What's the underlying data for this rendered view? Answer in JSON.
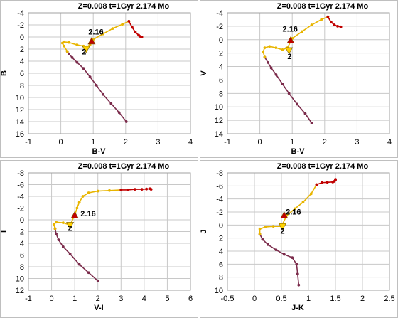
{
  "chart_data": [
    {
      "type": "scatter",
      "title": "Z=0.008  t=1Gyr  2.174 Mo",
      "xlabel": "B-V",
      "ylabel": "B",
      "xlim": [
        -1,
        4
      ],
      "ylim": [
        16,
        -4
      ],
      "xticks": [
        "-1",
        "0",
        "1",
        "2",
        "3",
        "4"
      ],
      "yticks": [
        "-4",
        "-2",
        "0",
        "2",
        "4",
        "6",
        "8",
        "10",
        "12",
        "14",
        "16"
      ],
      "grid": true,
      "annotations": [
        {
          "text": "2.16",
          "x": 0.85,
          "y": -0.4
        },
        {
          "text": "2",
          "x": 0.65,
          "y": 2.9
        }
      ],
      "markers": [
        {
          "name": "tri-2.16",
          "x": 0.95,
          "y": 0.7,
          "color": "#c00000"
        },
        {
          "name": "tri-2",
          "x": 0.78,
          "y": 2.0,
          "color": "#ffd200"
        }
      ],
      "series": [
        {
          "color": "#7b2b4b",
          "marker": "dot",
          "x": [
            2.02,
            1.8,
            1.55,
            1.3,
            1.1,
            0.9,
            0.7,
            0.5,
            0.35,
            0.25,
            0.2
          ],
          "y": [
            14.0,
            12.5,
            11.0,
            9.5,
            8.0,
            6.6,
            5.2,
            4.2,
            3.4,
            2.8,
            2.4
          ]
        },
        {
          "color": "#e8b500",
          "marker": "dot",
          "x": [
            0.2,
            0.1,
            0.05,
            0.1,
            0.25,
            0.5,
            0.7,
            0.8,
            0.9,
            0.95,
            1.0,
            1.3,
            1.6,
            1.9,
            2.1
          ],
          "y": [
            2.4,
            1.5,
            1.0,
            0.8,
            0.9,
            1.3,
            1.5,
            1.6,
            1.3,
            0.7,
            0.4,
            -0.5,
            -1.4,
            -2.1,
            -2.6
          ]
        },
        {
          "color": "#c00000",
          "marker": "dot",
          "x": [
            2.1,
            2.2,
            2.3,
            2.4,
            2.45,
            2.5
          ],
          "y": [
            -2.6,
            -1.6,
            -0.8,
            -0.3,
            -0.1,
            0.0
          ]
        }
      ]
    },
    {
      "type": "scatter",
      "title": "Z=0.008  t=1Gyr  2.174 Mo",
      "xlabel": "B-V",
      "ylabel": "V",
      "xlim": [
        -1,
        4
      ],
      "ylim": [
        14,
        -4
      ],
      "xticks": [
        "-1",
        "0",
        "1",
        "2",
        "3",
        "4"
      ],
      "yticks": [
        "-4",
        "-2",
        "0",
        "2",
        "4",
        "6",
        "8",
        "10",
        "12",
        "14"
      ],
      "grid": true,
      "annotations": [
        {
          "text": "2.16",
          "x": 0.7,
          "y": -1.2
        },
        {
          "text": "2",
          "x": 0.85,
          "y": 2.9
        }
      ],
      "markers": [
        {
          "name": "tri-2.16",
          "x": 0.95,
          "y": 0.1,
          "color": "#c00000"
        },
        {
          "name": "tri-2",
          "x": 0.9,
          "y": 1.6,
          "color": "#ffd200"
        }
      ],
      "series": [
        {
          "color": "#7b2b4b",
          "marker": "dot",
          "x": [
            1.6,
            1.4,
            1.15,
            0.9,
            0.7,
            0.5,
            0.35,
            0.25,
            0.15
          ],
          "y": [
            12.4,
            11.0,
            9.6,
            8.0,
            6.6,
            5.2,
            4.2,
            3.4,
            2.6
          ]
        },
        {
          "color": "#e8b500",
          "marker": "dot",
          "x": [
            0.15,
            0.1,
            0.15,
            0.3,
            0.5,
            0.7,
            0.85,
            0.95,
            1.0,
            1.3,
            1.6,
            1.9,
            2.1
          ],
          "y": [
            2.6,
            1.8,
            1.2,
            1.0,
            1.2,
            1.5,
            1.2,
            0.3,
            -0.2,
            -1.2,
            -2.2,
            -3.0,
            -3.4
          ]
        },
        {
          "color": "#c00000",
          "marker": "dot",
          "x": [
            2.1,
            2.2,
            2.3,
            2.4,
            2.5
          ],
          "y": [
            -3.4,
            -2.6,
            -2.2,
            -2.0,
            -1.9
          ]
        }
      ]
    },
    {
      "type": "scatter",
      "title": "Z=0.008  t=1Gyr  2.174 Mo",
      "xlabel": "V-I",
      "ylabel": "I",
      "xlim": [
        -1,
        6
      ],
      "ylim": [
        12,
        -8
      ],
      "xticks": [
        "-1",
        "0",
        "1",
        "2",
        "3",
        "4",
        "5",
        "6"
      ],
      "yticks": [
        "-8",
        "-6",
        "-4",
        "-2",
        "0",
        "2",
        "4",
        "6",
        "8",
        "10",
        "12"
      ],
      "grid": true,
      "annotations": [
        {
          "text": "2.16",
          "x": 1.25,
          "y": -0.6
        },
        {
          "text": "2",
          "x": 0.7,
          "y": 1.9
        }
      ],
      "markers": [
        {
          "name": "tri-2.16",
          "x": 1.0,
          "y": -0.8,
          "color": "#c00000"
        },
        {
          "name": "tri-2",
          "x": 0.8,
          "y": 0.9,
          "color": "#ffd200"
        }
      ],
      "series": [
        {
          "color": "#7b2b4b",
          "marker": "dot",
          "x": [
            2.0,
            1.6,
            1.2,
            0.8,
            0.5,
            0.3,
            0.2,
            0.15
          ],
          "y": [
            10.4,
            9.0,
            7.6,
            5.8,
            4.6,
            3.4,
            2.4,
            1.5
          ]
        },
        {
          "color": "#e8b500",
          "marker": "dot",
          "x": [
            0.15,
            0.1,
            0.2,
            0.5,
            0.8,
            1.0,
            1.1,
            1.2,
            1.35,
            1.6,
            2.0,
            2.5,
            3.0
          ],
          "y": [
            1.5,
            0.8,
            0.4,
            0.5,
            0.9,
            -0.8,
            -2.0,
            -3.0,
            -4.0,
            -4.6,
            -4.9,
            -5.0,
            -5.1
          ]
        },
        {
          "color": "#c00000",
          "marker": "dot",
          "x": [
            3.0,
            3.3,
            3.6,
            3.9,
            4.1,
            4.25,
            4.3
          ],
          "y": [
            -5.1,
            -5.1,
            -5.2,
            -5.2,
            -5.25,
            -5.3,
            -5.2
          ]
        }
      ]
    },
    {
      "type": "scatter",
      "title": "Z=0.008  t=1Gyr  2.174 Mo",
      "xlabel": "J-K",
      "ylabel": "J",
      "xlim": [
        -0.5,
        2.5
      ],
      "ylim": [
        10,
        -8
      ],
      "xticks": [
        "-0.5",
        "0",
        "0.5",
        "1",
        "1.5",
        "2",
        "2.5"
      ],
      "yticks": [
        "-8",
        "-6",
        "-4",
        "-2",
        "0",
        "2",
        "4",
        "6",
        "8",
        "10"
      ],
      "grid": true,
      "annotations": [
        {
          "text": "2.16",
          "x": 0.58,
          "y": -1.6
        },
        {
          "text": "2",
          "x": 0.48,
          "y": 1.3
        }
      ],
      "markers": [
        {
          "name": "tri-2.16",
          "x": 0.55,
          "y": -1.5,
          "color": "#c00000"
        },
        {
          "name": "tri-2",
          "x": 0.52,
          "y": 0.2,
          "color": "#ffd200"
        }
      ],
      "series": [
        {
          "color": "#7b2b4b",
          "marker": "dot",
          "x": [
            0.82,
            0.8,
            0.78,
            0.7,
            0.55,
            0.4,
            0.25,
            0.15,
            0.1
          ],
          "y": [
            9.2,
            7.5,
            6.0,
            5.0,
            4.5,
            3.8,
            3.0,
            2.2,
            1.4
          ]
        },
        {
          "color": "#e8b500",
          "marker": "dot",
          "x": [
            0.1,
            0.1,
            0.2,
            0.35,
            0.5,
            0.6,
            0.75,
            0.9,
            1.05,
            1.15
          ],
          "y": [
            1.4,
            0.6,
            0.3,
            0.2,
            0.2,
            -1.5,
            -2.5,
            -3.5,
            -4.8,
            -6.2
          ]
        },
        {
          "color": "#c00000",
          "marker": "dot",
          "x": [
            1.15,
            1.25,
            1.35,
            1.45,
            1.48,
            1.5,
            1.5
          ],
          "y": [
            -6.2,
            -6.5,
            -6.55,
            -6.6,
            -6.7,
            -6.9,
            -7.0
          ]
        }
      ]
    }
  ]
}
